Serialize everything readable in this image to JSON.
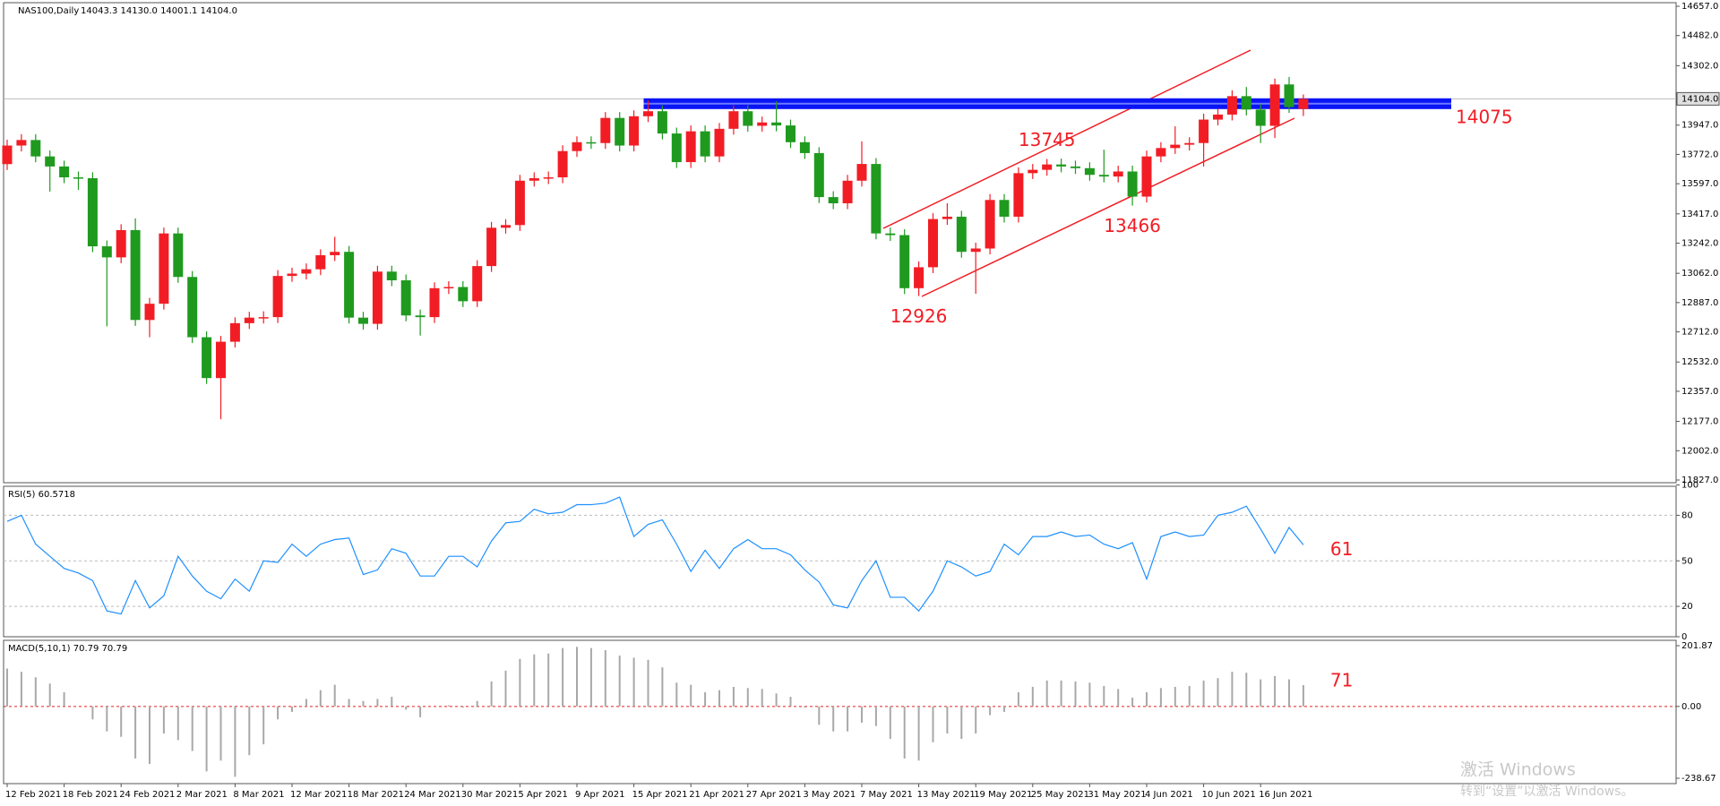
{
  "chart_data": [
    {
      "type": "candlestick",
      "title": "NAS100,Daily",
      "subtitle": "14043.3 14130.0 14001.1 14104.0",
      "up_color": "#f21d24",
      "down_color": "#1f9a1f",
      "categories": [
        "12 Feb 2021",
        null,
        null,
        null,
        "18 Feb 2021",
        null,
        null,
        null,
        "24 Feb 2021",
        null,
        null,
        null,
        "2 Mar 2021",
        null,
        null,
        null,
        "8 Mar 2021",
        null,
        null,
        null,
        "12 Mar 2021",
        null,
        null,
        null,
        "18 Mar 2021",
        null,
        null,
        null,
        "24 Mar 2021",
        null,
        null,
        null,
        "30 Mar 2021",
        null,
        null,
        null,
        "5 Apr 2021",
        null,
        null,
        null,
        "9 Apr 2021",
        null,
        null,
        null,
        "15 Apr 2021",
        null,
        null,
        null,
        "21 Apr 2021",
        null,
        null,
        null,
        "27 Apr 2021",
        null,
        null,
        null,
        "3 May 2021",
        null,
        null,
        null,
        "7 May 2021",
        null,
        null,
        null,
        "13 May 2021",
        null,
        null,
        null,
        "19 May 2021",
        null,
        null,
        null,
        "25 May 2021",
        null,
        null,
        null,
        "31 May 2021",
        null,
        null,
        null,
        "4 Jun 2021",
        null,
        null,
        null,
        "10 Jun 2021",
        null,
        null,
        null,
        "16 Jun 2021",
        null,
        null,
        null
      ],
      "ohlc": [
        [
          13714,
          13860,
          13679,
          13825
        ],
        [
          13825,
          13893,
          13790,
          13858
        ],
        [
          13858,
          13893,
          13725,
          13760
        ],
        [
          13760,
          13795,
          13550,
          13700
        ],
        [
          13700,
          13735,
          13600,
          13635
        ],
        [
          13635,
          13670,
          13560,
          13630
        ],
        [
          13630,
          13665,
          13188,
          13223
        ],
        [
          13223,
          13258,
          12745,
          13157
        ],
        [
          13157,
          13355,
          13122,
          13320
        ],
        [
          13320,
          13390,
          12748,
          12783
        ],
        [
          12783,
          12915,
          12680,
          12880
        ],
        [
          12880,
          13335,
          12845,
          13300
        ],
        [
          13300,
          13335,
          13005,
          13040
        ],
        [
          13040,
          13075,
          12645,
          12680
        ],
        [
          12680,
          12715,
          12401,
          12436
        ],
        [
          12436,
          12688,
          12190,
          12653
        ],
        [
          12653,
          12799,
          12618,
          12764
        ],
        [
          12764,
          12832,
          12729,
          12797
        ],
        [
          12797,
          12835,
          12762,
          12800
        ],
        [
          12800,
          13081,
          12765,
          13046
        ],
        [
          13046,
          13095,
          13011,
          13060
        ],
        [
          13060,
          13121,
          13025,
          13086
        ],
        [
          13086,
          13205,
          13051,
          13170
        ],
        [
          13170,
          13280,
          13135,
          13190
        ],
        [
          13190,
          13225,
          12762,
          12797
        ],
        [
          12797,
          12832,
          12725,
          12760
        ],
        [
          12760,
          13107,
          12725,
          13072
        ],
        [
          13072,
          13107,
          12985,
          13020
        ],
        [
          13020,
          13055,
          12775,
          12810
        ],
        [
          12810,
          12845,
          12690,
          12800
        ],
        [
          12800,
          13008,
          12765,
          12973
        ],
        [
          12973,
          13015,
          12938,
          12980
        ],
        [
          12980,
          13015,
          12860,
          12895
        ],
        [
          12895,
          13140,
          12860,
          13105
        ],
        [
          13105,
          13369,
          13070,
          13334
        ],
        [
          13334,
          13385,
          13299,
          13350
        ],
        [
          13350,
          13650,
          13315,
          13615
        ],
        [
          13615,
          13665,
          13580,
          13630
        ],
        [
          13630,
          13670,
          13595,
          13635
        ],
        [
          13635,
          13827,
          13600,
          13792
        ],
        [
          13792,
          13880,
          13757,
          13845
        ],
        [
          13845,
          13880,
          13805,
          13840
        ],
        [
          13840,
          14025,
          13805,
          13990
        ],
        [
          13990,
          14025,
          13790,
          13825
        ],
        [
          13825,
          14035,
          13790,
          14000
        ],
        [
          14000,
          14095,
          13965,
          14030
        ],
        [
          14030,
          14065,
          13862,
          13897
        ],
        [
          13897,
          13932,
          13691,
          13726
        ],
        [
          13726,
          13945,
          13691,
          13910
        ],
        [
          13910,
          13945,
          13725,
          13760
        ],
        [
          13760,
          13960,
          13725,
          13925
        ],
        [
          13925,
          14065,
          13890,
          14030
        ],
        [
          14030,
          14065,
          13908,
          13943
        ],
        [
          13943,
          13998,
          13908,
          13963
        ],
        [
          13963,
          14090,
          13910,
          13945
        ],
        [
          13945,
          13980,
          13810,
          13845
        ],
        [
          13845,
          13880,
          13745,
          13780
        ],
        [
          13780,
          13815,
          13482,
          13517
        ],
        [
          13517,
          13552,
          13445,
          13480
        ],
        [
          13480,
          13650,
          13445,
          13615
        ],
        [
          13615,
          13850,
          13580,
          13715
        ],
        [
          13715,
          13750,
          13265,
          13300
        ],
        [
          13300,
          13335,
          13255,
          13290
        ],
        [
          13290,
          13325,
          12938,
          12973
        ],
        [
          12973,
          13133,
          12926,
          13098
        ],
        [
          13098,
          13421,
          13063,
          13386
        ],
        [
          13386,
          13480,
          13351,
          13400
        ],
        [
          13400,
          13435,
          13155,
          13190
        ],
        [
          13190,
          13245,
          12940,
          13210
        ],
        [
          13210,
          13535,
          13175,
          13500
        ],
        [
          13500,
          13535,
          13365,
          13400
        ],
        [
          13400,
          13695,
          13365,
          13660
        ],
        [
          13660,
          13715,
          13625,
          13680
        ],
        [
          13680,
          13745,
          13645,
          13712
        ],
        [
          13712,
          13747,
          13665,
          13700
        ],
        [
          13700,
          13735,
          13655,
          13690
        ],
        [
          13690,
          13725,
          13615,
          13650
        ],
        [
          13650,
          13800,
          13605,
          13640
        ],
        [
          13640,
          13705,
          13605,
          13670
        ],
        [
          13670,
          13705,
          13466,
          13520
        ],
        [
          13520,
          13795,
          13485,
          13760
        ],
        [
          13760,
          13845,
          13725,
          13810
        ],
        [
          13810,
          13940,
          13775,
          13830
        ],
        [
          13830,
          13875,
          13795,
          13840
        ],
        [
          13840,
          14015,
          13700,
          13980
        ],
        [
          13980,
          14045,
          13945,
          14010
        ],
        [
          14010,
          14155,
          13975,
          14120
        ],
        [
          14120,
          14175,
          14005,
          14040
        ],
        [
          14040,
          14075,
          13840,
          13943
        ],
        [
          13943,
          14225,
          13870,
          14190
        ],
        [
          14190,
          14235,
          14020,
          14055
        ],
        [
          14043.3,
          14130,
          14001.1,
          14104
        ]
      ],
      "ylim": [
        11827,
        14657
      ],
      "yticks": [
        {
          "value": 14657,
          "label": "14657.0"
        },
        {
          "value": 14482,
          "label": "14482.0"
        },
        {
          "value": 14302,
          "label": "14302.0"
        },
        {
          "value": 14122,
          "label": "14122.0"
        },
        {
          "value": 13947,
          "label": "13947.0"
        },
        {
          "value": 13772,
          "label": "13772.0"
        },
        {
          "value": 13597,
          "label": "13597.0"
        },
        {
          "value": 13417,
          "label": "13417.0"
        },
        {
          "value": 13242,
          "label": "13242.0"
        },
        {
          "value": 13062,
          "label": "13062.0"
        },
        {
          "value": 12887,
          "label": "12887.0"
        },
        {
          "value": 12712,
          "label": "12712.0"
        },
        {
          "value": 12532,
          "label": "12532.0"
        },
        {
          "value": 12357,
          "label": "12357.0"
        },
        {
          "value": 12177,
          "label": "12177.0"
        },
        {
          "value": 12002,
          "label": "12002.0"
        },
        {
          "value": 11827,
          "label": "11827.0"
        }
      ],
      "last_price": {
        "value": 14104,
        "label": "14104.0"
      },
      "level": 14075,
      "level_color": "#0a14f5",
      "annotations": [
        13745,
        13466,
        12926
      ],
      "annotation_color": "#f21d24"
    },
    {
      "type": "line",
      "title": "RSI(5) 60.5718",
      "color": "#1e90ff",
      "values": [
        76,
        80,
        61,
        53,
        45,
        42,
        37,
        17,
        15,
        37,
        19,
        27,
        53,
        40,
        30,
        25,
        38,
        30,
        50,
        49,
        61,
        53,
        61,
        64,
        65,
        41,
        44,
        58,
        55,
        40,
        40,
        53,
        53,
        46,
        63,
        75,
        76,
        84,
        81,
        82,
        87,
        87,
        88,
        92,
        66,
        74,
        77,
        61,
        43,
        57,
        45,
        58,
        64,
        58,
        58,
        54,
        44,
        36,
        21,
        19,
        37,
        50,
        26,
        26,
        17,
        30,
        50,
        46,
        40,
        43,
        61,
        54,
        66,
        66,
        69,
        66,
        67,
        61,
        58,
        62,
        38,
        66,
        69,
        66,
        67,
        80,
        82,
        86,
        71,
        55,
        72,
        60.5718
      ],
      "ylim": [
        0,
        100
      ],
      "yticks": [
        100,
        80,
        50,
        20,
        0
      ],
      "annotation": "61"
    },
    {
      "type": "bar",
      "title": "MACD(5,10,1) 70.79 70.79",
      "color": "#a8a8a8",
      "zero_color": "#e02020",
      "values": [
        126,
        115,
        97,
        76,
        47,
        0,
        -43,
        -83,
        -101,
        -173,
        -191,
        -90,
        -112,
        -148,
        -216,
        -180,
        -234,
        -162,
        -126,
        -43,
        -18,
        25,
        54,
        72,
        25,
        18,
        25,
        32,
        -11,
        -36,
        0,
        4,
        -4,
        18,
        83,
        119,
        158,
        173,
        176,
        194,
        198,
        194,
        187,
        169,
        162,
        155,
        130,
        79,
        72,
        47,
        54,
        65,
        61,
        58,
        43,
        32,
        -4,
        -61,
        -83,
        -83,
        -54,
        -65,
        -108,
        -173,
        -180,
        -119,
        -90,
        -108,
        -90,
        -29,
        -18,
        47,
        65,
        86,
        86,
        83,
        79,
        68,
        58,
        29,
        47,
        61,
        65,
        68,
        86,
        94,
        115,
        112,
        90,
        101,
        90,
        70.79
      ],
      "ylim": [
        -238.67,
        201.87
      ],
      "yticks": [
        201.87,
        {
          "value": 0,
          "label": "0.00"
        },
        -238.67
      ],
      "annotation": "71"
    }
  ],
  "watermark": [
    "激活 Windows",
    "转到“设置”以激活 Windows。"
  ]
}
